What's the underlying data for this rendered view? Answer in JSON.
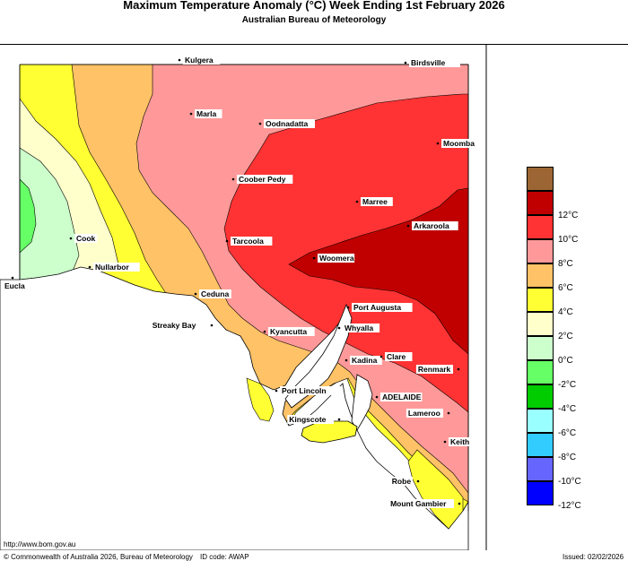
{
  "header": {
    "title": "Maximum Temperature Anomaly (°C)   Week Ending 1st February 2026",
    "subtitle": "Australian Bureau of Meteorology"
  },
  "legend": [
    {
      "label": "",
      "color": "#9b6633"
    },
    {
      "label": "12°C",
      "color": "#c00000"
    },
    {
      "label": "10°C",
      "color": "#ff3333"
    },
    {
      "label": "8°C",
      "color": "#ff9999"
    },
    {
      "label": "6°C",
      "color": "#ffc266"
    },
    {
      "label": "4°C",
      "color": "#ffff33"
    },
    {
      "label": "2°C",
      "color": "#ffffcc"
    },
    {
      "label": "0°C",
      "color": "#ccffcc"
    },
    {
      "label": "-2°C",
      "color": "#66ff66"
    },
    {
      "label": "-4°C",
      "color": "#00cc00"
    },
    {
      "label": "-6°C",
      "color": "#99ffff"
    },
    {
      "label": "-8°C",
      "color": "#33ccff"
    },
    {
      "label": "-10°C",
      "color": "#6666ff"
    },
    {
      "label": "-12°C",
      "color": "#0000ff"
    }
  ],
  "places": [
    {
      "name": "Kulgera"
    },
    {
      "name": "Birdsville"
    },
    {
      "name": "Marla"
    },
    {
      "name": "Oodnadatta"
    },
    {
      "name": "Moomba"
    },
    {
      "name": "Coober Pedy"
    },
    {
      "name": "Marree"
    },
    {
      "name": "Arkaroola"
    },
    {
      "name": "Tarcoola"
    },
    {
      "name": "Woomera"
    },
    {
      "name": "Cook"
    },
    {
      "name": "Nullarbor"
    },
    {
      "name": "Eucla"
    },
    {
      "name": "Ceduna"
    },
    {
      "name": "Port Augusta"
    },
    {
      "name": "Streaky Bay"
    },
    {
      "name": "Whyalla"
    },
    {
      "name": "Kyancutta"
    },
    {
      "name": "Kadina"
    },
    {
      "name": "Clare"
    },
    {
      "name": "Renmark"
    },
    {
      "name": "Port Lincoln"
    },
    {
      "name": "ADELAIDE"
    },
    {
      "name": "Kingscote"
    },
    {
      "name": "Lameroo"
    },
    {
      "name": "Keith"
    },
    {
      "name": "Robe"
    },
    {
      "name": "Mount Gambier"
    }
  ],
  "footer": {
    "url": "http://www.bom.gov.au",
    "copyright": "© Commonwealth of Australia 2026, Bureau of Meteorology",
    "id_code": "ID code: AWAP",
    "issued": "Issued: 02/02/2026"
  }
}
